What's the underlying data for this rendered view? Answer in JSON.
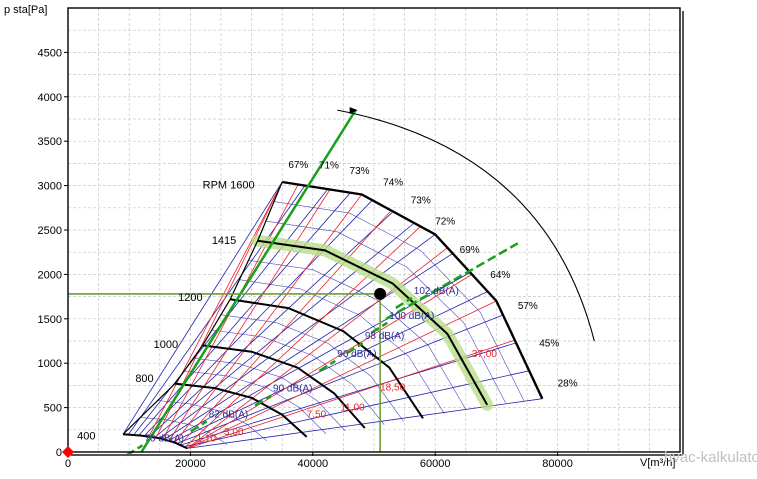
{
  "chart_data": {
    "type": "line",
    "xlabel": "V[m³/h]",
    "ylabel": "p sta[Pa]",
    "xlim": [
      0,
      100000
    ],
    "ylim": [
      0,
      5000
    ],
    "x_ticks": [
      0,
      20000,
      40000,
      60000,
      80000
    ],
    "y_ticks": [
      0,
      500,
      1000,
      1500,
      2000,
      2500,
      3000,
      3500,
      4000,
      4500
    ],
    "grid": true,
    "rpm_curves": [
      {
        "label": "RPM 1600",
        "points": [
          [
            35000,
            3040
          ],
          [
            48000,
            2900
          ],
          [
            60000,
            2450
          ],
          [
            70000,
            1700
          ],
          [
            77500,
            600
          ]
        ],
        "label_at": [
          22000,
          2970
        ]
      },
      {
        "label": "1415",
        "points": [
          [
            31000,
            2380
          ],
          [
            42000,
            2270
          ],
          [
            53000,
            1900
          ],
          [
            62000,
            1330
          ],
          [
            68500,
            530
          ]
        ],
        "label_at": [
          23500,
          2340
        ]
      },
      {
        "label": "1200",
        "points": [
          [
            26500,
            1720
          ],
          [
            36000,
            1620
          ],
          [
            45000,
            1360
          ],
          [
            52500,
            950
          ],
          [
            58000,
            380
          ]
        ],
        "label_at": [
          18000,
          1700
        ]
      },
      {
        "label": "1000",
        "points": [
          [
            22000,
            1200
          ],
          [
            30000,
            1130
          ],
          [
            37500,
            950
          ],
          [
            43500,
            660
          ],
          [
            48500,
            270
          ]
        ],
        "label_at": [
          14000,
          1170
        ]
      },
      {
        "label": "800",
        "points": [
          [
            17500,
            770
          ],
          [
            24000,
            720
          ],
          [
            30000,
            610
          ],
          [
            35000,
            420
          ],
          [
            39000,
            170
          ]
        ],
        "label_at": [
          11000,
          790
        ]
      },
      {
        "label": "400",
        "points": [
          [
            9000,
            200
          ],
          [
            12000,
            185
          ],
          [
            15000,
            155
          ],
          [
            17500,
            105
          ],
          [
            19500,
            40
          ]
        ],
        "label_at": [
          1500,
          140
        ]
      }
    ],
    "efficiency_labels": [
      {
        "label": "67%",
        "at": [
          36000,
          3200
        ]
      },
      {
        "label": "71%",
        "at": [
          41000,
          3190
        ]
      },
      {
        "label": "73%",
        "at": [
          46000,
          3130
        ]
      },
      {
        "label": "74%",
        "at": [
          51500,
          3000
        ]
      },
      {
        "label": "73%",
        "at": [
          56000,
          2800
        ]
      },
      {
        "label": "72%",
        "at": [
          60000,
          2560
        ]
      },
      {
        "label": "69%",
        "at": [
          64000,
          2240
        ]
      },
      {
        "label": "64%",
        "at": [
          69000,
          1960
        ]
      },
      {
        "label": "57%",
        "at": [
          73500,
          1610
        ]
      },
      {
        "label": "45%",
        "at": [
          77000,
          1190
        ]
      },
      {
        "label": "28%",
        "at": [
          80000,
          740
        ]
      }
    ],
    "sound_levels": [
      {
        "label": "102 dB(A)",
        "at": [
          56500,
          1780
        ]
      },
      {
        "label": "100 dB(A)",
        "at": [
          52500,
          1500
        ]
      },
      {
        "label": "98 dB(A)",
        "at": [
          48500,
          1270
        ]
      },
      {
        "label": "96 dB(A)",
        "at": [
          44000,
          1070
        ]
      },
      {
        "label": "90 dB(A)",
        "at": [
          33500,
          680
        ]
      },
      {
        "label": "82 dB(A)",
        "at": [
          23000,
          390
        ]
      },
      {
        "label": "70 dB(A)",
        "at": [
          12500,
          120
        ]
      }
    ],
    "power_labels": [
      {
        "label": "37,00",
        "at": [
          66000,
          1070
        ]
      },
      {
        "label": "18,50",
        "at": [
          51000,
          690
        ]
      },
      {
        "label": "11,00",
        "at": [
          44500,
          470
        ]
      },
      {
        "label": "7,50",
        "at": [
          39000,
          390
        ]
      },
      {
        "label": "3,00",
        "at": [
          25500,
          190
        ]
      },
      {
        "label": "1,10",
        "at": [
          21000,
          120
        ]
      }
    ],
    "operating_point": {
      "x": 51000,
      "y": 1780
    },
    "zero_marker": {
      "x": 0,
      "y": 0
    }
  },
  "watermark": "hvac-kalkulator.net",
  "colors": {
    "frame": "#000000",
    "grid": "#c8c8c8",
    "rpm_curve": "#000000",
    "efficiency_line": "#2222aa",
    "power_line": "#e8232a",
    "sound_line": "#1a9f1a",
    "sound_text": "#2b2b9b",
    "power_text": "#e8232a",
    "green_guide": "#6aa03a",
    "highlight_band": "#b9dd8a",
    "marker": "#ff0000",
    "watermark": "#c0c0c0"
  }
}
